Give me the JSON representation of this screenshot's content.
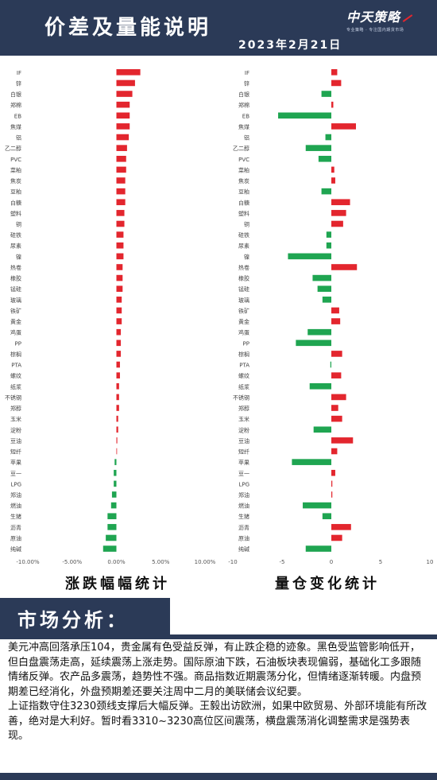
{
  "header": {
    "title": "价差及量能说明",
    "date": "2023年2月21日",
    "logo_brand": "中天策略",
    "logo_slogan": "专业策略 · 专注国内期货市场"
  },
  "colors": {
    "up": "#e3262e",
    "down": "#1fa551",
    "header_bg": "#2b3a57"
  },
  "chart_data": [
    {
      "type": "bar",
      "orientation": "horizontal",
      "caption": "涨跌幅幅统计",
      "categories": [
        "IF",
        "锌",
        "白银",
        "郑棉",
        "EB",
        "焦煤",
        "铝",
        "乙二醇",
        "PVC",
        "菜粕",
        "焦炭",
        "豆粕",
        "白糖",
        "塑料",
        "铜",
        "硅铁",
        "尿素",
        "镍",
        "热卷",
        "橡胶",
        "锰硅",
        "玻璃",
        "铁矿",
        "黄金",
        "鸡蛋",
        "PP",
        "棕榈",
        "PTA",
        "螺纹",
        "纸浆",
        "不锈钢",
        "郑醇",
        "玉米",
        "淀粉",
        "豆油",
        "短纤",
        "苹果",
        "豆一",
        "LPG",
        "郑油",
        "燃油",
        "生猪",
        "沥青",
        "原油",
        "纯碱"
      ],
      "values": [
        2.7,
        2.1,
        1.8,
        1.5,
        1.5,
        1.5,
        1.4,
        1.2,
        1.1,
        1.1,
        1.0,
        1.0,
        1.0,
        0.9,
        0.9,
        0.8,
        0.8,
        0.8,
        0.7,
        0.7,
        0.7,
        0.6,
        0.6,
        0.6,
        0.5,
        0.5,
        0.5,
        0.4,
        0.4,
        0.3,
        0.3,
        0.3,
        0.2,
        0.2,
        0.1,
        0.0,
        -0.2,
        -0.3,
        -0.3,
        -0.5,
        -0.6,
        -1.0,
        -1.0,
        -1.2,
        -1.5
      ],
      "xlim": [
        -10,
        10
      ],
      "ticks": [
        "-10.00%",
        "-5.00%",
        "0.00%",
        "5.00%",
        "10.00%"
      ]
    },
    {
      "type": "bar",
      "orientation": "horizontal",
      "caption": "量仓变化统计",
      "categories": [
        "IF",
        "锌",
        "白银",
        "郑棉",
        "EB",
        "焦煤",
        "铝",
        "乙二醇",
        "PVC",
        "菜粕",
        "焦炭",
        "豆粕",
        "白糖",
        "塑料",
        "铜",
        "硅铁",
        "尿素",
        "镍",
        "热卷",
        "橡胶",
        "锰硅",
        "玻璃",
        "铁矿",
        "黄金",
        "鸡蛋",
        "PP",
        "棕榈",
        "PTA",
        "螺纹",
        "纸浆",
        "不锈钢",
        "郑醇",
        "玉米",
        "淀粉",
        "豆油",
        "短纤",
        "苹果",
        "豆一",
        "LPG",
        "郑油",
        "燃油",
        "生猪",
        "沥青",
        "原油",
        "纯碱"
      ],
      "values": [
        0.6,
        1.0,
        -1.0,
        0.2,
        -5.4,
        2.5,
        -0.6,
        -2.6,
        -1.3,
        0.3,
        0.4,
        -1.0,
        1.9,
        1.5,
        1.2,
        -0.5,
        -0.5,
        -4.4,
        2.6,
        -1.9,
        -1.4,
        -0.9,
        0.8,
        0.9,
        -2.4,
        -3.6,
        1.1,
        -0.1,
        1.0,
        -2.2,
        1.5,
        0.7,
        1.1,
        -1.8,
        2.2,
        0.6,
        -4.0,
        0.4,
        0.1,
        0.1,
        -2.9,
        -0.9,
        2.0,
        1.1,
        -2.6
      ],
      "xlim": [
        -10,
        10
      ],
      "ticks": [
        "-10",
        "-5",
        "0",
        "5",
        "10"
      ]
    }
  ],
  "section": {
    "title": "市场分析："
  },
  "analysis": {
    "p1": "美元冲高回落承压104，贵金属有色受益反弹，有止跌企稳的迹象。黑色受监管影响低开，但白盘震荡走高，延续震荡上涨走势。国际原油下跌，石油板块表现偏弱，基础化工多跟随情绪反弹。农产品多震荡，趋势性不强。商品指数近期震荡分化，但情绪逐渐转暖。内盘预期差已经消化，外盘预期差还要关注周中二月的美联储会议纪要。",
    "p2": "上证指数守住3230颈线支撑后大幅反弹。王毅出访欧洲，如果中欧贸易、外部环境能有所改善，绝对是大利好。暂时看3310~3230高位区间震荡，横盘震荡消化调整需求是强势表现。"
  }
}
